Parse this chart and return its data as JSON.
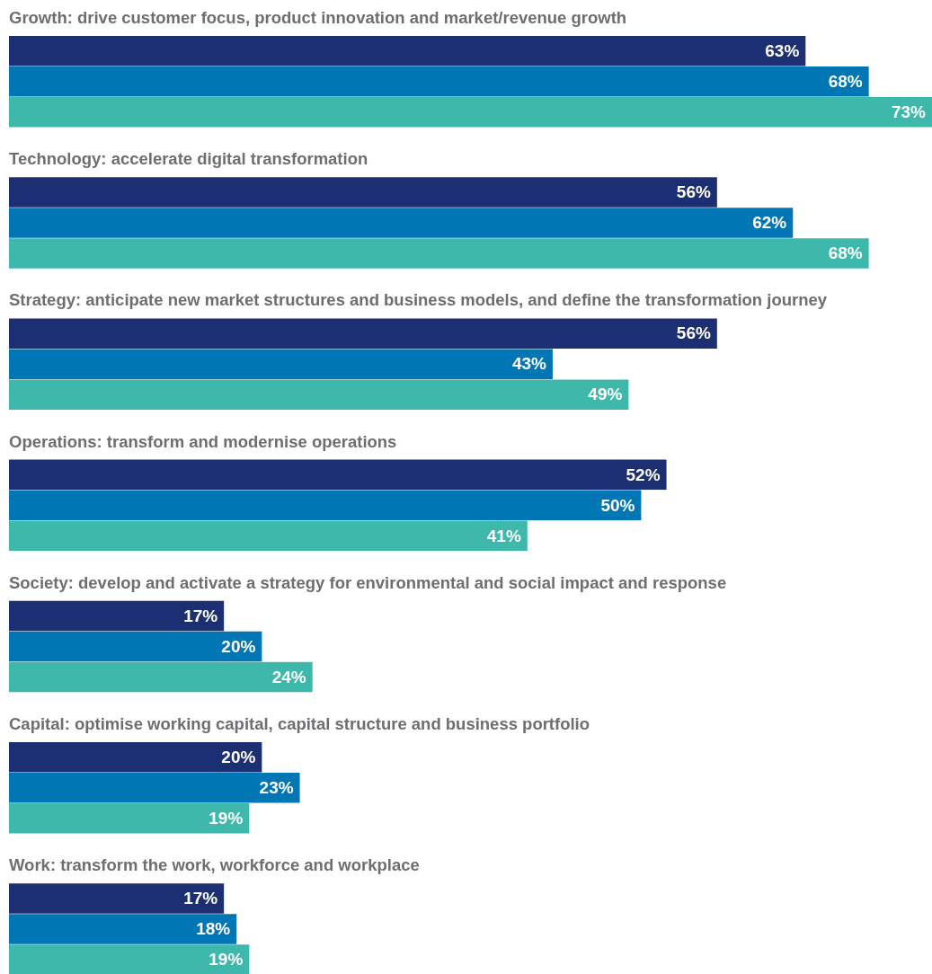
{
  "chart_data": {
    "type": "bar",
    "orientation": "horizontal",
    "categories": [
      "Growth: drive customer focus, product innovation and market/revenue growth",
      "Technology: accelerate digital transformation",
      "Strategy: anticipate new market structures and business models, and define the transformation journey",
      "Operations: transform and modernise operations",
      "Society: develop and activate a strategy for environmental and social impact and response",
      "Capital: optimise working capital, capital structure and business portfolio",
      "Work: transform the work, workforce and workplace"
    ],
    "series": [
      {
        "color": "#1d2f73",
        "values": [
          63,
          56,
          56,
          52,
          17,
          20,
          17
        ],
        "value_labels": [
          "63%",
          "56%",
          "56%",
          "52%",
          "17%",
          "20%",
          "17%"
        ]
      },
      {
        "color": "#0076b5",
        "values": [
          68,
          62,
          43,
          50,
          20,
          23,
          18
        ],
        "value_labels": [
          "68%",
          "62%",
          "43%",
          "50%",
          "20%",
          "23%",
          "18%"
        ]
      },
      {
        "color": "#3fb8ac",
        "values": [
          73,
          68,
          49,
          41,
          24,
          19,
          19
        ],
        "value_labels": [
          "73%",
          "68%",
          "49%",
          "41%",
          "24%",
          "19%",
          "19%"
        ]
      }
    ]
  }
}
